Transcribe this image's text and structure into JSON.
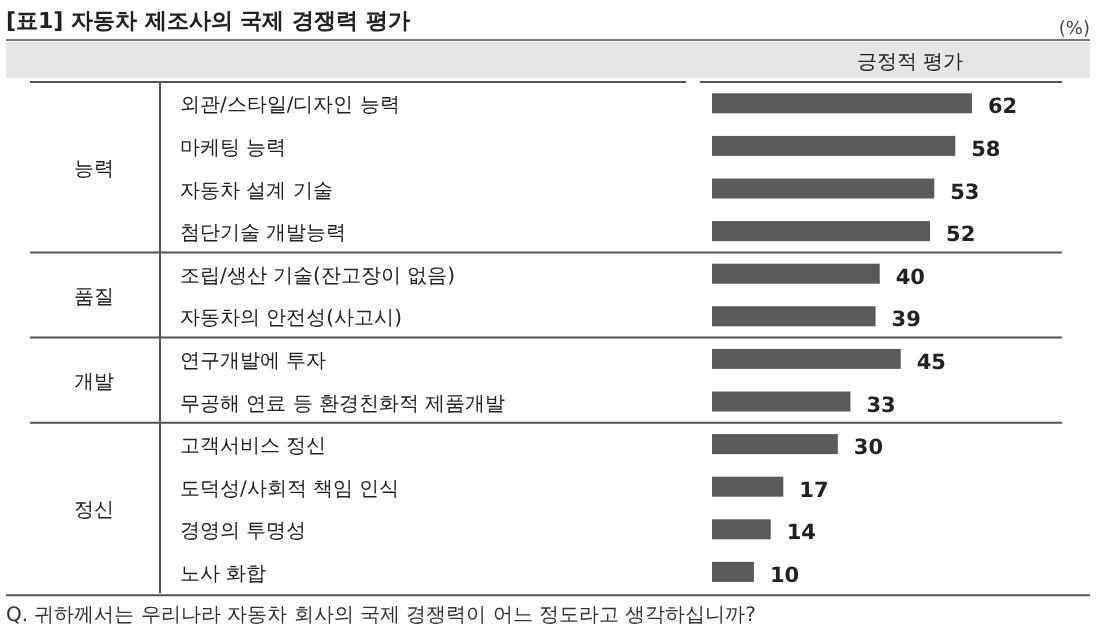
{
  "chart_data": {
    "type": "bar",
    "orientation": "horizontal",
    "title": "[표1] 자동차 제조사의 국제 경쟁력 평가",
    "xlabel": "긍정적 평가",
    "categories": [
      "외관/스타일/디자인 능력",
      "마케팅 능력",
      "자동차 설계 기술",
      "첨단기술 개발능력",
      "조립/생산 기술(잔고장이 없음)",
      "자동차의 안전성(사고시)",
      "연구개발에 투자",
      "무공해 연료 등 환경친화적 제품개발",
      "고객서비스 정신",
      "도덕성/사회적 책임 인식",
      "경영의 투명성",
      "노사 화합"
    ],
    "values": [
      62,
      58,
      53,
      52,
      40,
      39,
      45,
      33,
      30,
      17,
      14,
      10
    ],
    "color": "#5a5a5a",
    "data_labels": true,
    "annotations": [
      "(%)",
      "능력",
      "품질",
      "개발",
      "정신",
      "Q. 귀하께서는 우리나라 자동차 회사의 국제 경쟁력이 어느 정도라고 생각하십니까?"
    ]
  }
}
